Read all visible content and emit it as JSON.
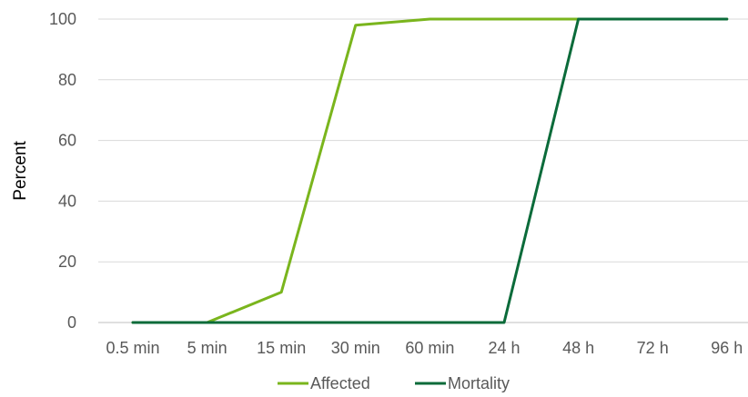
{
  "chart_data": {
    "type": "line",
    "title": "",
    "xlabel": "",
    "ylabel": "Percent",
    "categories": [
      "0.5 min",
      "5 min",
      "15 min",
      "30 min",
      "60 min",
      "24 h",
      "48 h",
      "72 h",
      "96 h"
    ],
    "ylim": [
      0,
      100
    ],
    "yticks": [
      0,
      20,
      40,
      60,
      80,
      100
    ],
    "grid": true,
    "legend_position": "bottom",
    "series": [
      {
        "name": "Affected",
        "color": "#7ab51d",
        "values": [
          0,
          0,
          10,
          98,
          100,
          100,
          100,
          100,
          100
        ]
      },
      {
        "name": "Mortality",
        "color": "#0b6b3a",
        "values": [
          0,
          0,
          0,
          0,
          0,
          0,
          100,
          100,
          100
        ]
      }
    ]
  },
  "colors": {
    "grid": "#d9d9d9",
    "axis": "#bfbfbf",
    "tick_text": "#595959"
  }
}
